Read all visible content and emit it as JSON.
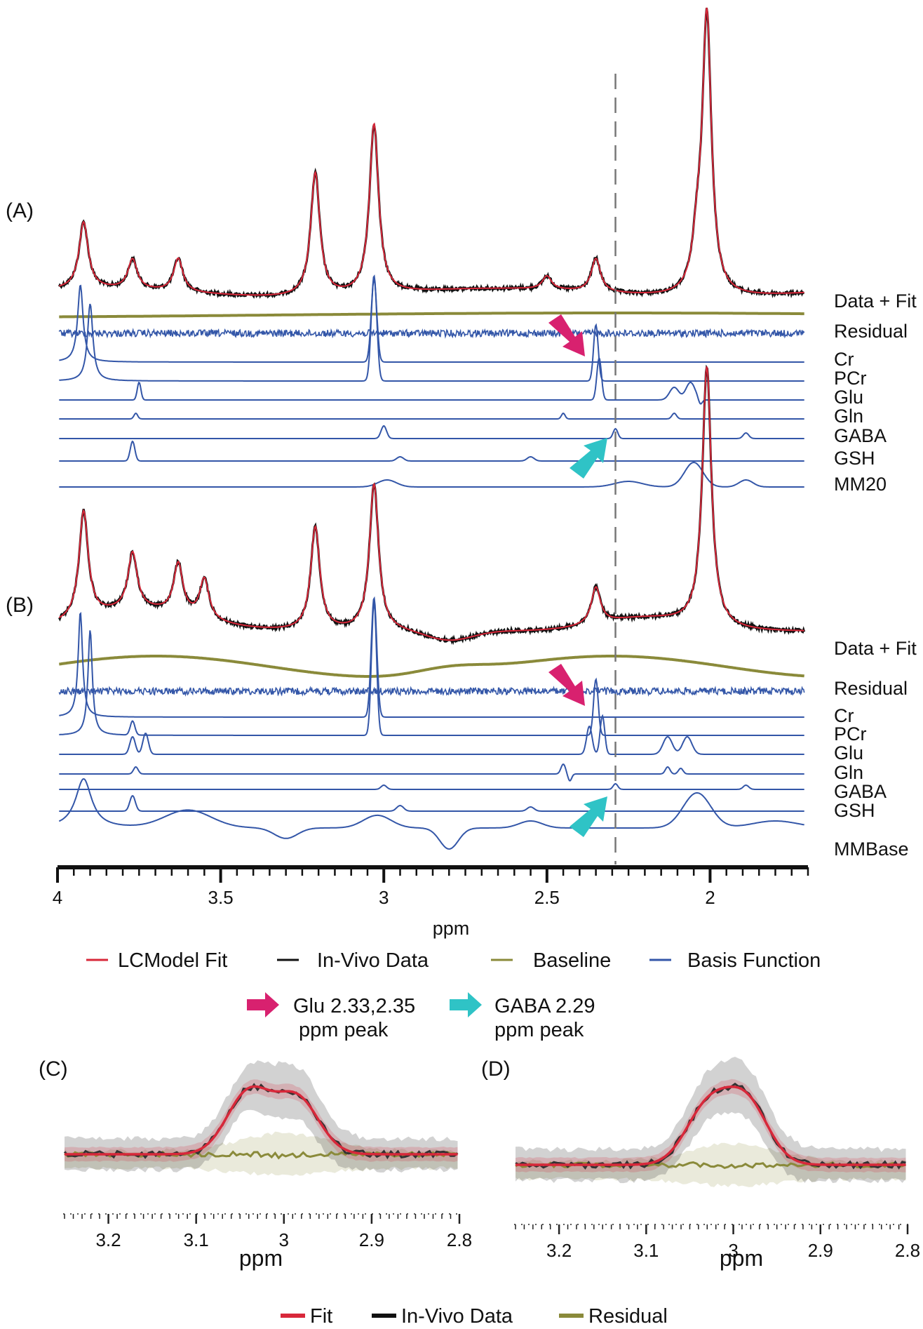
{
  "chart_data": [
    {
      "id": "A",
      "type": "line",
      "panel_label": "(A)",
      "x_axis": {
        "label": "ppm",
        "range": [
          4.0,
          1.7
        ],
        "ticks": [
          4,
          3.5,
          3,
          2.5,
          2
        ],
        "tick_labels": [
          "4",
          "3.5",
          "3",
          "2.5",
          "2"
        ]
      },
      "dashed_marker_ppm": 2.29,
      "series": [
        {
          "name": "In-Vivo Data",
          "role": "data",
          "row": "Data + Fit",
          "color": "#111111"
        },
        {
          "name": "LCModel Fit",
          "role": "fit",
          "row": "Data + Fit",
          "color": "#d8283a",
          "peaks": [
            [
              3.92,
              1.0
            ],
            [
              3.77,
              0.45
            ],
            [
              3.63,
              0.5
            ],
            [
              3.21,
              1.85
            ],
            [
              3.03,
              2.55
            ],
            [
              2.35,
              0.5
            ],
            [
              2.01,
              4.2
            ],
            [
              2.5,
              0.2
            ],
            [
              2.04,
              0.6
            ]
          ]
        },
        {
          "name": "Baseline",
          "role": "baseline",
          "color": "#8a8a3a"
        },
        {
          "name": "Residual",
          "role": "residual",
          "color": "#3356a8"
        },
        {
          "name": "Cr",
          "role": "basis",
          "color": "#3356a8",
          "peaks": [
            [
              3.93,
              1.0
            ],
            [
              3.03,
              1.0
            ]
          ]
        },
        {
          "name": "PCr",
          "role": "basis",
          "color": "#3356a8",
          "peaks": [
            [
              3.94,
              1.0
            ],
            [
              3.03,
              1.0
            ]
          ]
        },
        {
          "name": "Glu",
          "role": "basis",
          "color": "#3356a8",
          "peaks": [
            [
              3.75,
              0.5
            ],
            [
              2.35,
              1.0
            ],
            [
              2.11,
              0.3
            ],
            [
              2.06,
              0.4
            ]
          ]
        },
        {
          "name": "Gln",
          "role": "basis",
          "color": "#3356a8",
          "peaks": [
            [
              3.76,
              0.3
            ],
            [
              2.45,
              0.3
            ],
            [
              2.11,
              0.3
            ]
          ]
        },
        {
          "name": "GABA",
          "role": "basis",
          "color": "#3356a8",
          "peaks": [
            [
              3.0,
              0.6
            ],
            [
              2.29,
              0.6
            ],
            [
              1.89,
              0.4
            ]
          ]
        },
        {
          "name": "GSH",
          "role": "basis",
          "color": "#3356a8",
          "peaks": [
            [
              3.77,
              0.6
            ],
            [
              2.95,
              0.2
            ],
            [
              2.55,
              0.2
            ]
          ]
        },
        {
          "name": "MM20",
          "role": "basis",
          "color": "#3356a8",
          "peaks": [
            [
              2.99,
              0.3
            ],
            [
              2.05,
              1.0
            ],
            [
              1.89,
              0.3
            ]
          ]
        }
      ],
      "trace_labels": [
        "Data + Fit",
        "Residual",
        "Cr",
        "PCr",
        "Glu",
        "Gln",
        "GABA",
        "GSH",
        "MM20"
      ],
      "annotations": [
        {
          "type": "arrow",
          "color": "#d8216f",
          "target": "Glu 2.33,2.35 ppm peak"
        },
        {
          "type": "arrow",
          "color": "#2fc3c6",
          "target": "GABA 2.29 ppm peak"
        }
      ]
    },
    {
      "id": "B",
      "type": "line",
      "panel_label": "(B)",
      "x_axis": {
        "label": "ppm",
        "range": [
          4.0,
          1.7
        ],
        "ticks": [
          4,
          3.5,
          3,
          2.5,
          2
        ],
        "tick_labels": [
          "4",
          "3.5",
          "3",
          "2.5",
          "2"
        ]
      },
      "dashed_marker_ppm": 2.29,
      "series": [
        {
          "name": "In-Vivo Data",
          "role": "data",
          "row": "Data + Fit",
          "color": "#111111"
        },
        {
          "name": "LCModel Fit",
          "role": "fit",
          "row": "Data + Fit",
          "color": "#d8283a",
          "peaks": [
            [
              3.92,
              1.6
            ],
            [
              3.77,
              0.85
            ],
            [
              3.63,
              0.75
            ],
            [
              3.55,
              0.6
            ],
            [
              3.21,
              1.55
            ],
            [
              3.03,
              2.2
            ],
            [
              2.35,
              0.55
            ],
            [
              2.01,
              3.9
            ]
          ]
        },
        {
          "name": "Baseline",
          "role": "baseline",
          "color": "#8a8a3a"
        },
        {
          "name": "Residual",
          "role": "residual",
          "color": "#3356a8"
        },
        {
          "name": "Cr",
          "role": "basis",
          "color": "#3356a8"
        },
        {
          "name": "PCr",
          "role": "basis",
          "color": "#3356a8"
        },
        {
          "name": "Glu",
          "role": "basis",
          "color": "#3356a8"
        },
        {
          "name": "Gln",
          "role": "basis",
          "color": "#3356a8"
        },
        {
          "name": "GABA",
          "role": "basis",
          "color": "#3356a8"
        },
        {
          "name": "GSH",
          "role": "basis",
          "color": "#3356a8"
        },
        {
          "name": "MMBase",
          "role": "basis",
          "color": "#3356a8"
        }
      ],
      "trace_labels": [
        "Data + Fit",
        "Residual",
        "Cr",
        "PCr",
        "Glu",
        "Gln",
        "GABA",
        "GSH",
        "MMBase"
      ]
    },
    {
      "id": "C",
      "type": "area",
      "panel_label": "(C)",
      "x_axis": {
        "label": "ppm",
        "range": [
          3.25,
          2.8
        ],
        "ticks": [
          3.2,
          3.1,
          3.0,
          2.9,
          2.8
        ],
        "tick_labels": [
          "3.2",
          "3.1",
          "3",
          "2.9",
          "2.8"
        ]
      },
      "series": [
        {
          "name": "Fit",
          "color": "#d8283a",
          "band": true,
          "peaks": [
            [
              3.04,
              1.0
            ],
            [
              2.985,
              0.9
            ]
          ]
        },
        {
          "name": "In-Vivo Data",
          "color": "#333333",
          "band": true
        },
        {
          "name": "Residual",
          "color": "#8a8a3a",
          "band": true
        }
      ]
    },
    {
      "id": "D",
      "type": "area",
      "panel_label": "(D)",
      "x_axis": {
        "label": "ppm",
        "range": [
          3.25,
          2.8
        ],
        "ticks": [
          3.2,
          3.1,
          3.0,
          2.9,
          2.8
        ],
        "tick_labels": [
          "3.2",
          "3.1",
          "3",
          "2.9",
          "2.8"
        ]
      },
      "series": [
        {
          "name": "Fit",
          "color": "#d8283a",
          "band": true,
          "peaks": [
            [
              3.03,
              0.9
            ],
            [
              2.985,
              1.0
            ]
          ]
        },
        {
          "name": "In-Vivo Data",
          "color": "#333333",
          "band": true
        },
        {
          "name": "Residual",
          "color": "#8a8a3a",
          "band": true
        }
      ]
    }
  ],
  "legend_main": [
    {
      "label": "LCModel Fit",
      "color": "#d8283a"
    },
    {
      "label": "In-Vivo Data",
      "color": "#111111"
    },
    {
      "label": "Baseline",
      "color": "#8a8a3a"
    },
    {
      "label": "Basis Function",
      "color": "#3356a8"
    }
  ],
  "legend_arrows": [
    {
      "line1": "Glu 2.33,2.35",
      "line2": "ppm peak",
      "color": "#d8216f"
    },
    {
      "line1": "GABA 2.29",
      "line2": "ppm peak",
      "color": "#2fc3c6"
    }
  ],
  "legend_bottom": [
    {
      "label": "Fit",
      "color": "#d8283a"
    },
    {
      "label": "In-Vivo Data",
      "color": "#111111"
    },
    {
      "label": "Residual",
      "color": "#8a8a3a"
    }
  ]
}
